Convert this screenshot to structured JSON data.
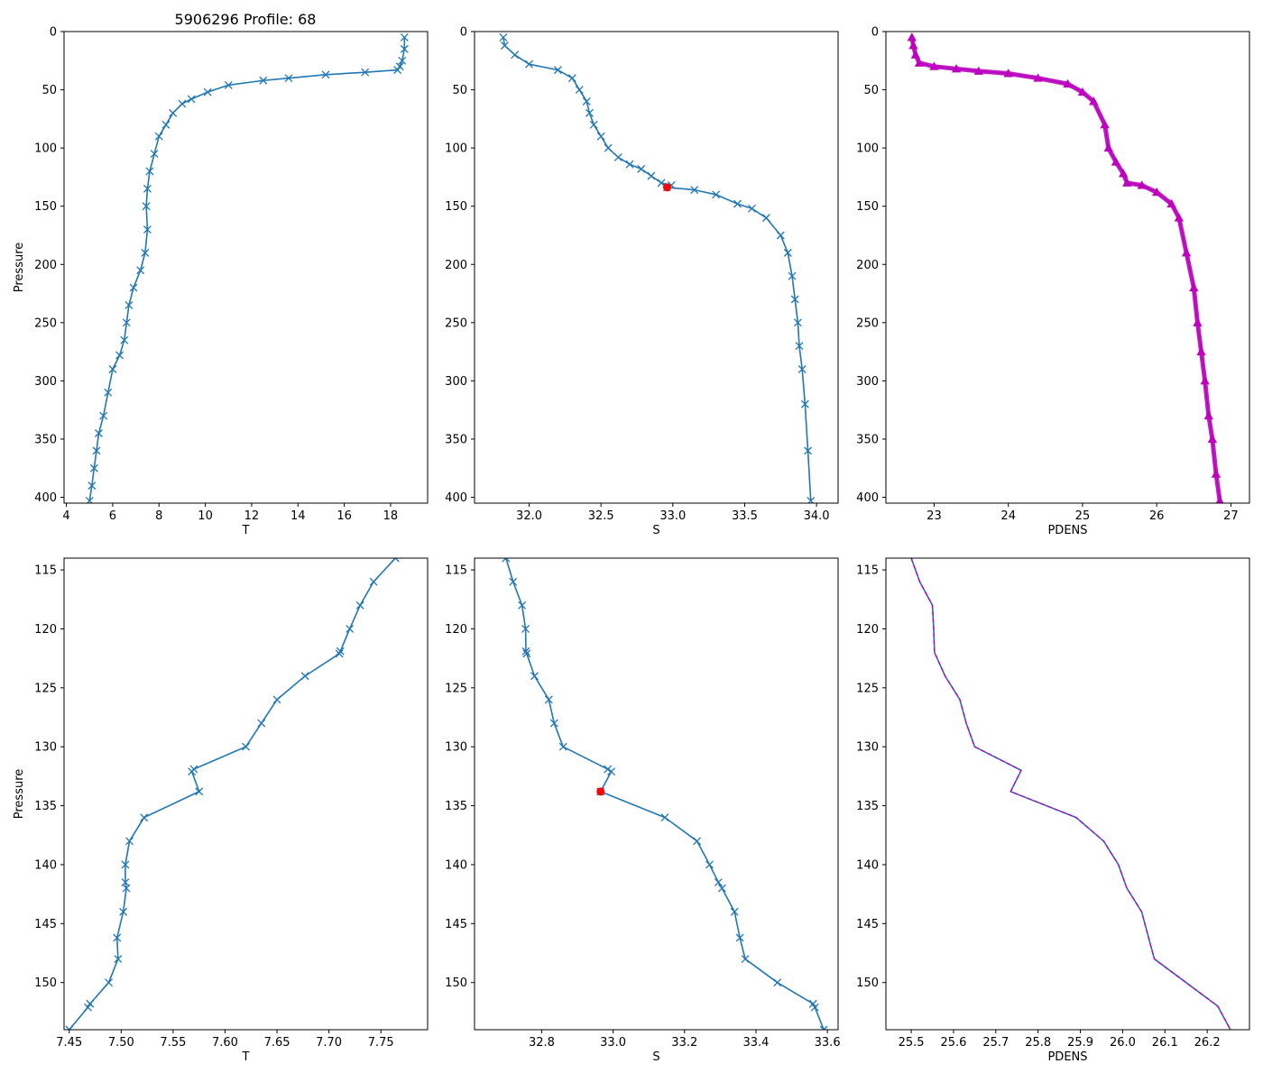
{
  "figure_title": "5906296 Profile: 68",
  "colors": {
    "line": "#1f77b4",
    "density": "#bf00bf",
    "marker_highlight": "#ff0000"
  },
  "chart_data": [
    {
      "type": "line",
      "id": "T_full",
      "xlabel": "T",
      "ylabel": "Pressure",
      "xlim": [
        3.9,
        19.6
      ],
      "ylim": [
        405,
        0
      ],
      "xticks": [
        4,
        6,
        8,
        10,
        12,
        14,
        16,
        18
      ],
      "xtick_labels": [
        "4",
        "6",
        "8",
        "10",
        "12",
        "14",
        "16",
        "18"
      ],
      "yticks": [
        0,
        50,
        100,
        150,
        200,
        250,
        300,
        350,
        400
      ],
      "ytick_labels": [
        "0",
        "50",
        "100",
        "150",
        "200",
        "250",
        "300",
        "350",
        "400"
      ],
      "marker": "x",
      "x": [
        18.6,
        18.6,
        18.5,
        18.4,
        18.3,
        16.9,
        15.2,
        13.6,
        12.5,
        11.0,
        10.1,
        9.4,
        9.0,
        8.6,
        8.3,
        8.0,
        7.8,
        7.6,
        7.5,
        7.45,
        7.5,
        7.4,
        7.2,
        6.9,
        6.7,
        6.6,
        6.5,
        6.3,
        6.0,
        5.8,
        5.6,
        5.4,
        5.3,
        5.2,
        5.1,
        5.0
      ],
      "y": [
        5,
        15,
        25,
        30,
        33,
        35,
        37,
        40,
        42,
        46,
        52,
        58,
        62,
        70,
        80,
        90,
        105,
        120,
        135,
        150,
        170,
        190,
        205,
        220,
        235,
        250,
        265,
        278,
        290,
        310,
        330,
        345,
        360,
        375,
        390,
        403
      ]
    },
    {
      "type": "line",
      "id": "S_full",
      "xlabel": "S",
      "ylabel": "",
      "xlim": [
        31.62,
        34.15
      ],
      "ylim": [
        405,
        0
      ],
      "xticks": [
        32.0,
        32.5,
        33.0,
        33.5,
        34.0
      ],
      "xtick_labels": [
        "32.0",
        "32.5",
        "33.0",
        "33.5",
        "34.0"
      ],
      "yticks": [
        0,
        50,
        100,
        150,
        200,
        250,
        300,
        350,
        400
      ],
      "ytick_labels": [
        "0",
        "50",
        "100",
        "150",
        "200",
        "250",
        "300",
        "350",
        "400"
      ],
      "marker": "x",
      "x": [
        31.82,
        31.83,
        31.9,
        32.0,
        32.2,
        32.3,
        32.35,
        32.4,
        32.42,
        32.45,
        32.5,
        32.55,
        32.62,
        32.7,
        32.78,
        32.85,
        32.92,
        32.99,
        32.96,
        33.15,
        33.3,
        33.45,
        33.55,
        33.65,
        33.75,
        33.8,
        33.83,
        33.85,
        33.87,
        33.88,
        33.9,
        33.92,
        33.94,
        33.96
      ],
      "y": [
        5,
        12,
        20,
        28,
        33,
        40,
        50,
        60,
        70,
        80,
        90,
        100,
        108,
        114,
        118,
        124,
        130,
        132,
        133.8,
        136,
        140,
        148,
        152,
        160,
        175,
        190,
        210,
        230,
        250,
        270,
        290,
        320,
        360,
        403
      ],
      "highlight": {
        "x": 32.96,
        "y": 133.8
      }
    },
    {
      "type": "line",
      "id": "PDENS_full",
      "xlabel": "PDENS",
      "ylabel": "",
      "xlim": [
        22.35,
        27.25
      ],
      "ylim": [
        405,
        0
      ],
      "xticks": [
        23,
        24,
        25,
        26,
        27
      ],
      "xtick_labels": [
        "23",
        "24",
        "25",
        "26",
        "27"
      ],
      "yticks": [
        0,
        50,
        100,
        150,
        200,
        250,
        300,
        350,
        400
      ],
      "ytick_labels": [
        "0",
        "50",
        "100",
        "150",
        "200",
        "250",
        "300",
        "350",
        "400"
      ],
      "marker": "^",
      "x": [
        22.7,
        22.72,
        22.75,
        22.8,
        23.0,
        23.3,
        23.6,
        24.0,
        24.4,
        24.8,
        25.0,
        25.15,
        25.3,
        25.35,
        25.45,
        25.55,
        25.6,
        25.8,
        26.0,
        26.2,
        26.3,
        26.4,
        26.5,
        26.55,
        26.6,
        26.65,
        26.7,
        26.75,
        26.8,
        26.85
      ],
      "y": [
        5,
        12,
        20,
        27,
        30,
        32,
        34,
        36,
        40,
        45,
        52,
        60,
        80,
        100,
        112,
        122,
        130,
        132,
        138,
        148,
        160,
        190,
        220,
        250,
        275,
        300,
        330,
        350,
        380,
        403
      ],
      "highlight_color": "#bf00bf"
    },
    {
      "type": "line",
      "id": "T_zoom",
      "xlabel": "T",
      "ylabel": "Pressure",
      "xlim": [
        7.445,
        7.795
      ],
      "ylim": [
        154,
        114
      ],
      "xticks": [
        7.45,
        7.5,
        7.55,
        7.6,
        7.65,
        7.7,
        7.75
      ],
      "xtick_labels": [
        "7.45",
        "7.50",
        "7.55",
        "7.60",
        "7.65",
        "7.70",
        "7.75"
      ],
      "yticks": [
        115,
        120,
        125,
        130,
        135,
        140,
        145,
        150
      ],
      "ytick_labels": [
        "115",
        "120",
        "125",
        "130",
        "135",
        "140",
        "145",
        "150"
      ],
      "marker": "x",
      "x": [
        7.764,
        7.743,
        7.73,
        7.72,
        7.711,
        7.71,
        7.677,
        7.65,
        7.635,
        7.62,
        7.57,
        7.568,
        7.575,
        7.522,
        7.508,
        7.504,
        7.504,
        7.505,
        7.502,
        7.496,
        7.497,
        7.488,
        7.47,
        7.468,
        7.45
      ],
      "y": [
        114,
        116,
        118,
        120,
        121.9,
        122.1,
        124,
        126,
        128,
        130,
        131.9,
        132.1,
        133.8,
        136,
        138,
        140,
        141.5,
        142,
        144,
        146.2,
        148,
        150,
        151.8,
        152.1,
        154
      ]
    },
    {
      "type": "line",
      "id": "S_zoom",
      "xlabel": "S",
      "ylabel": "",
      "xlim": [
        32.612,
        33.63
      ],
      "ylim": [
        154,
        114
      ],
      "xticks": [
        32.8,
        33.0,
        33.2,
        33.4,
        33.6
      ],
      "xtick_labels": [
        "32.8",
        "33.0",
        "33.2",
        "33.4",
        "33.6"
      ],
      "yticks": [
        115,
        120,
        125,
        130,
        135,
        140,
        145,
        150
      ],
      "ytick_labels": [
        "115",
        "120",
        "125",
        "130",
        "135",
        "140",
        "145",
        "150"
      ],
      "marker": "x",
      "x": [
        32.7,
        32.72,
        32.745,
        32.755,
        32.756,
        32.758,
        32.78,
        32.82,
        32.835,
        32.86,
        32.985,
        32.995,
        32.965,
        33.145,
        33.235,
        33.27,
        33.295,
        33.305,
        33.34,
        33.355,
        33.37,
        33.46,
        33.56,
        33.565,
        33.59
      ],
      "y": [
        114,
        116,
        118,
        120,
        121.9,
        122.1,
        124,
        126,
        128,
        130,
        131.9,
        132.1,
        133.8,
        136,
        138,
        140,
        141.5,
        142,
        144,
        146.2,
        148,
        150,
        151.8,
        152.1,
        154
      ],
      "highlight": {
        "x": 32.965,
        "y": 133.8
      }
    },
    {
      "type": "line",
      "id": "PDENS_zoom",
      "xlabel": "PDENS",
      "ylabel": "",
      "xlim": [
        25.44,
        26.3
      ],
      "ylim": [
        154,
        114
      ],
      "xticks": [
        25.5,
        25.6,
        25.7,
        25.8,
        25.9,
        26.0,
        26.1,
        26.2
      ],
      "xtick_labels": [
        "25.5",
        "25.6",
        "25.7",
        "25.8",
        "25.9",
        "26.0",
        "26.1",
        "26.2"
      ],
      "yticks": [
        115,
        120,
        125,
        130,
        135,
        140,
        145,
        150
      ],
      "ytick_labels": [
        "115",
        "120",
        "125",
        "130",
        "135",
        "140",
        "145",
        "150"
      ],
      "marker": "none",
      "x": [
        25.5,
        25.52,
        25.55,
        25.553,
        25.555,
        25.58,
        25.615,
        25.63,
        25.65,
        25.76,
        25.735,
        25.89,
        25.955,
        25.99,
        26.01,
        26.045,
        26.06,
        26.075,
        26.15,
        26.225,
        26.255
      ],
      "y": [
        114,
        116,
        118,
        120,
        122,
        124,
        126,
        128,
        130,
        132,
        133.8,
        136,
        138,
        140,
        142,
        144,
        146,
        148,
        150,
        152,
        154
      ],
      "overlay_dashed": true
    }
  ]
}
